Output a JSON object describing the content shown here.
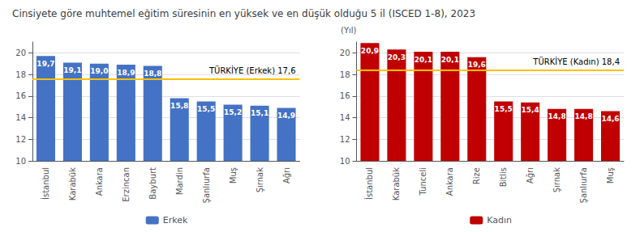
{
  "chart_data": [
    {
      "type": "bar",
      "title": "Cinsiyete göre muhtemel eğitim süresinin en yüksek ve en düşük olduğu 5 il (ISCED 1-8), 2023",
      "categories": [
        "İstanbul",
        "Karabük",
        "Ankara",
        "Erzincan",
        "Bayburt",
        "Mardin",
        "Şanlıurfa",
        "Muş",
        "Şırnak",
        "Ağrı"
      ],
      "series": [
        {
          "name": "Erkek",
          "color": "#4472C4",
          "values": [
            19.7,
            19.1,
            19.0,
            18.9,
            18.8,
            15.8,
            15.5,
            15.2,
            15.1,
            14.9
          ],
          "value_labels": [
            "19,7",
            "19,1",
            "19,0",
            "18,9",
            "18,8",
            "15,8",
            "15,5",
            "15,2",
            "15,1",
            "14,9"
          ]
        }
      ],
      "ylim": [
        10,
        21
      ],
      "yticks": [
        10,
        12,
        14,
        16,
        18,
        20
      ],
      "grid": true,
      "legend": "bottom",
      "data_labels": true,
      "reference_line": {
        "value": 17.6,
        "label": "TÜRKİYE (Erkek) 17,6",
        "color": "#FFC000"
      }
    },
    {
      "type": "bar",
      "categories": [
        "İstanbul",
        "Karabük",
        "Tunceli",
        "Ankara",
        "Rize",
        "Bitlis",
        "Ağrı",
        "Şırnak",
        "Şanlıurfa",
        "Muş"
      ],
      "series": [
        {
          "name": "Kadın",
          "color": "#C00000",
          "values": [
            20.9,
            20.3,
            20.1,
            20.1,
            19.6,
            15.5,
            15.4,
            14.8,
            14.8,
            14.6
          ],
          "value_labels": [
            "20,9",
            "20,3",
            "20,1",
            "20,1",
            "19,6",
            "15,5",
            "15,4",
            "14,8",
            "14,8",
            "14,6"
          ]
        }
      ],
      "ylabel": "(Yıl)",
      "ylim": [
        10,
        21
      ],
      "yticks": [
        10,
        12,
        14,
        16,
        18,
        20
      ],
      "grid": true,
      "legend": "bottom",
      "data_labels": true,
      "reference_line": {
        "value": 18.4,
        "label": "TÜRKİYE (Kadın) 18,4",
        "color": "#FFC000"
      }
    }
  ]
}
